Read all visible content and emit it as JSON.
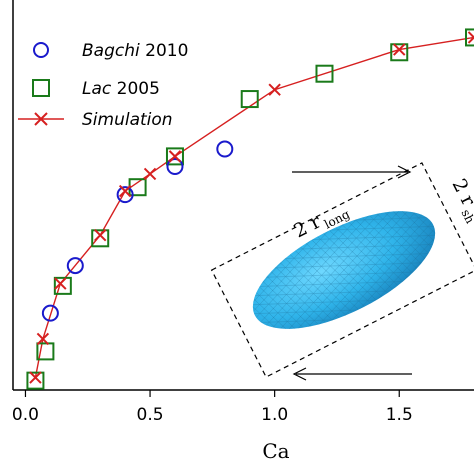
{
  "chart_data": {
    "type": "scatter",
    "xlabel": "Ca",
    "xlim": [
      -0.05,
      1.8
    ],
    "ylim": [
      0.0,
      1.0
    ],
    "x_ticks": [
      0.0,
      0.5,
      1.0,
      1.5
    ],
    "x_tick_labels": [
      "0.0",
      "0.5",
      "1.0",
      "1.5"
    ],
    "grid": false,
    "legend_position": "top-left",
    "series": [
      {
        "name_prefix": "Bagchi",
        "name_suffix": " 2010",
        "marker": "circle",
        "color": "#1a1acc",
        "x": [
          0.1,
          0.2,
          0.4,
          0.6,
          0.8
        ],
        "y": [
          0.197,
          0.319,
          0.501,
          0.573,
          0.618
        ]
      },
      {
        "name_prefix": "Lac",
        "name_suffix": " 2005",
        "marker": "square",
        "color": "#1a7a1a",
        "x": [
          0.04,
          0.08,
          0.15,
          0.3,
          0.45,
          0.6,
          0.9,
          1.2,
          1.5,
          1.8
        ],
        "y": [
          0.024,
          0.099,
          0.267,
          0.389,
          0.52,
          0.599,
          0.746,
          0.811,
          0.866,
          0.904
        ]
      },
      {
        "name": "Simulation",
        "marker": "x-line",
        "color": "#d62020",
        "x": [
          0.04,
          0.07,
          0.14,
          0.3,
          0.4,
          0.5,
          0.6,
          1.0,
          1.5,
          1.8
        ],
        "y": [
          0.032,
          0.131,
          0.273,
          0.397,
          0.51,
          0.554,
          0.599,
          0.77,
          0.873,
          0.904
        ]
      }
    ],
    "inset": {
      "label_long": "2 r",
      "label_long_sub": "long",
      "label_short": "2 r",
      "label_short_sub": "sh",
      "ellipsoid_color": "#2fb4ea",
      "arrow_top_direction": "right",
      "arrow_bottom_direction": "left"
    }
  }
}
